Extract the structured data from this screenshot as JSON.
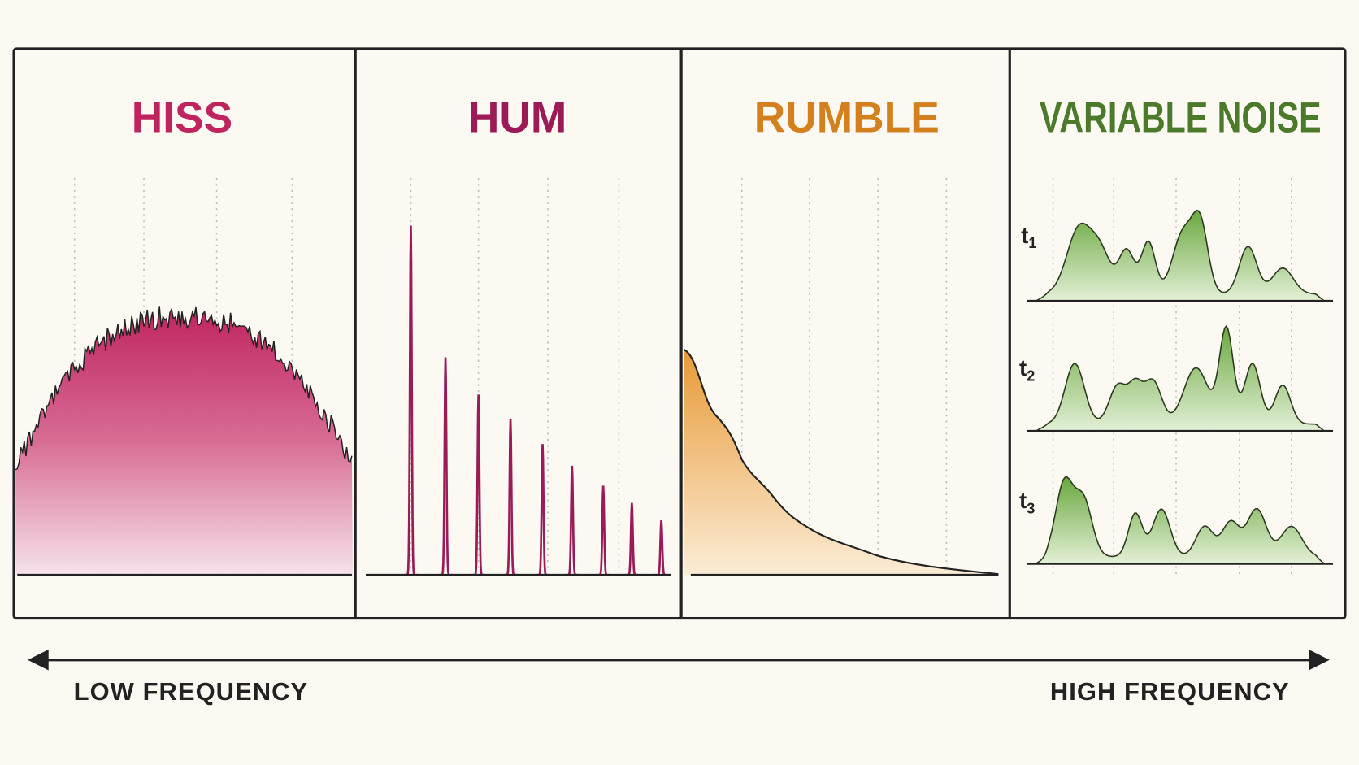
{
  "panels": [
    {
      "title": "HISS",
      "color": "#c0245f"
    },
    {
      "title": "HUM",
      "color": "#9a1b58"
    },
    {
      "title": "RUMBLE",
      "color": "#d5801f"
    },
    {
      "title": "VARIABLE NOISE",
      "color": "#4b7a2b"
    }
  ],
  "time_labels": [
    {
      "label": "t",
      "subscript": "1"
    },
    {
      "label": "t",
      "subscript": "2"
    },
    {
      "label": "t",
      "subscript": "3"
    }
  ],
  "axis": {
    "left_label": "LOW FREQUENCY",
    "right_label": "HIGH FREQUENCY"
  }
}
